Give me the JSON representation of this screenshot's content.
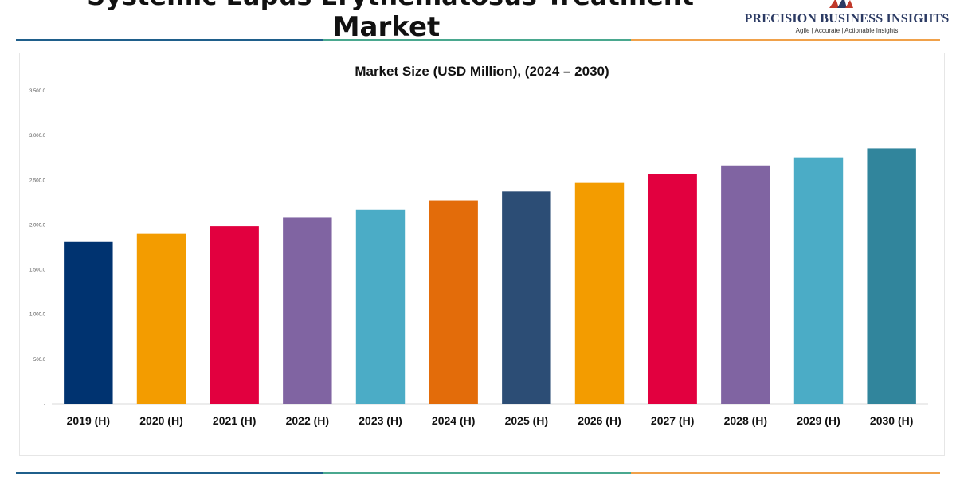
{
  "header": {
    "title_line1": "Systemic Lupus Erythematosus Treatment",
    "title_line2": "Market"
  },
  "brand": {
    "name": "PRECISION BUSINESS INSIGHTS",
    "tagline": "Agile | Accurate | Actionable Insights"
  },
  "rules": {
    "colors": [
      "#1f5f8b",
      "#4aa88f",
      "#f0a14a"
    ]
  },
  "chart_data": {
    "type": "bar",
    "title": "Market Size (USD Million), (2024 – 2030)",
    "xlabel": "",
    "ylabel": "",
    "ylim": [
      0,
      3500
    ],
    "yticks": [
      "-",
      "500.0",
      "1,000.0",
      "1,500.0",
      "2,000.0",
      "2,500.0",
      "3,000.0",
      "3,500.0"
    ],
    "categories": [
      "2019 (H)",
      "2020 (H)",
      "2021 (H)",
      "2022 (H)",
      "2023 (H)",
      "2024 (H)",
      "2025 (H)",
      "2026 (H)",
      "2027 (H)",
      "2028 (H)",
      "2029 (H)",
      "2030 (H)"
    ],
    "values": [
      1810,
      1900,
      1985,
      2080,
      2175,
      2275,
      2375,
      2470,
      2570,
      2665,
      2755,
      2855
    ],
    "colors": [
      "#003370",
      "#f39c00",
      "#e2003f",
      "#8064a2",
      "#4bacc6",
      "#e36c0a",
      "#2c4d75",
      "#f39c00",
      "#e2003f",
      "#8064a2",
      "#4bacc6",
      "#31859c"
    ],
    "grid": false,
    "legend": "none"
  }
}
